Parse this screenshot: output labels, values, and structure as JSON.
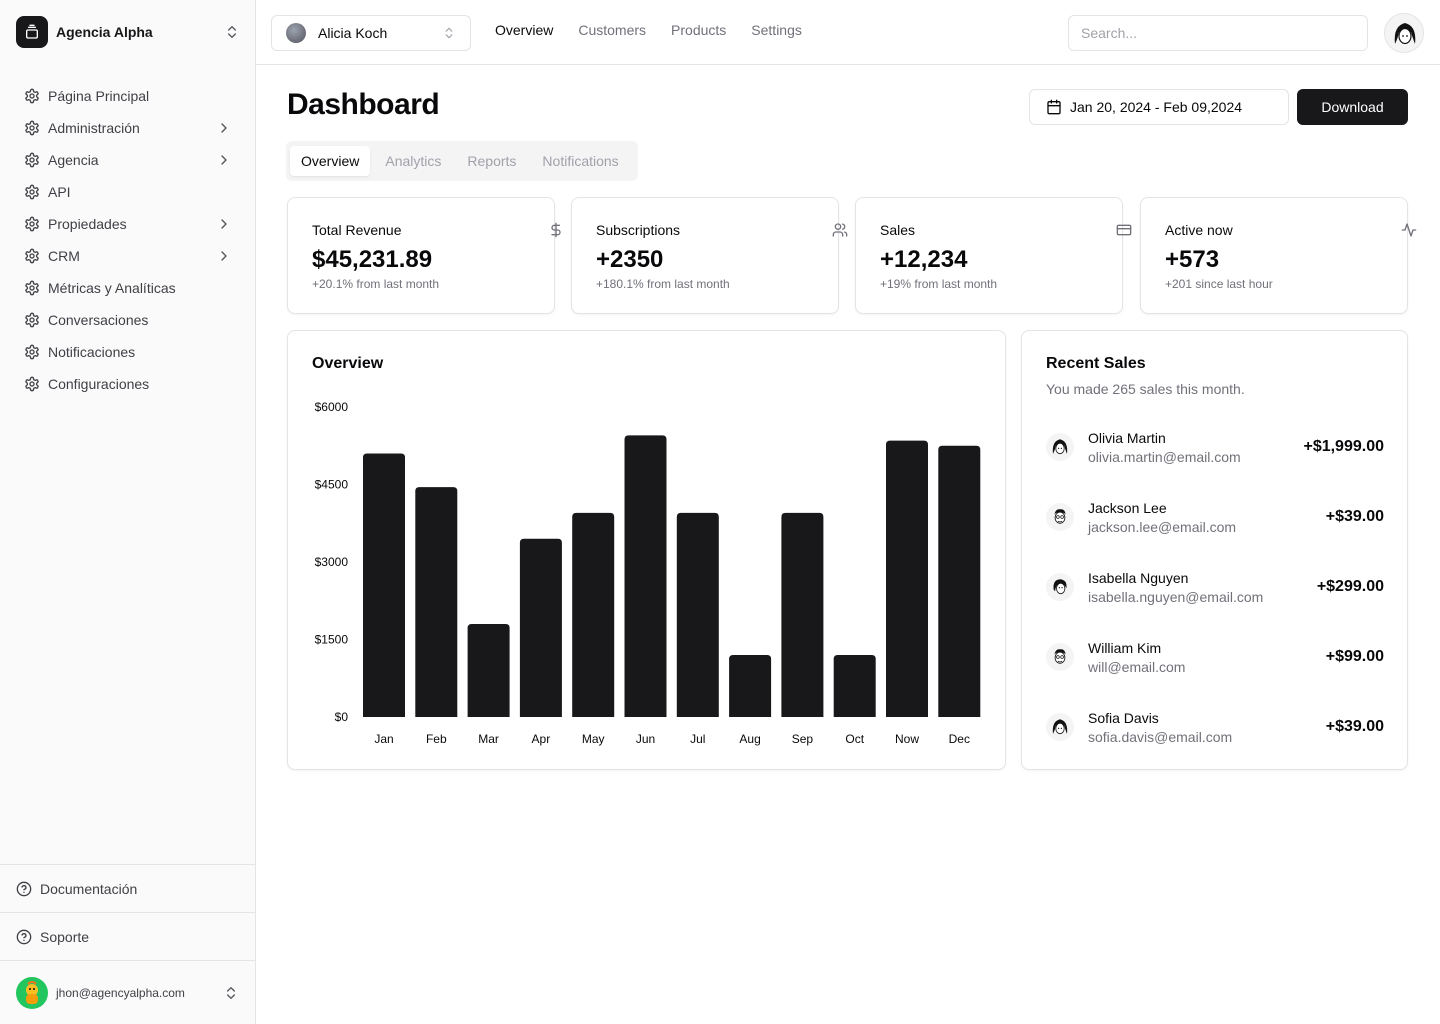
{
  "sidebar": {
    "brand": "Agencia Alpha",
    "items": [
      {
        "label": "Página Principal",
        "has_children": false
      },
      {
        "label": "Administración",
        "has_children": true
      },
      {
        "label": "Agencia",
        "has_children": true
      },
      {
        "label": "API",
        "has_children": false
      },
      {
        "label": "Propiedades",
        "has_children": true
      },
      {
        "label": "CRM",
        "has_children": true
      },
      {
        "label": "Métricas y Analíticas",
        "has_children": false
      },
      {
        "label": "Conversaciones",
        "has_children": false
      },
      {
        "label": "Notificaciones",
        "has_children": false
      },
      {
        "label": "Configuraciones",
        "has_children": false
      }
    ],
    "footer": {
      "docs": "Documentación",
      "support": "Soporte"
    },
    "user_email": "jhon@agencyalpha.com"
  },
  "topbar": {
    "team": "Alicia Koch",
    "nav": [
      "Overview",
      "Customers",
      "Products",
      "Settings"
    ],
    "active_nav": "Overview",
    "search_placeholder": "Search..."
  },
  "main": {
    "title": "Dashboard",
    "date_range": "Jan 20, 2024 - Feb 09,2024",
    "download_label": "Download",
    "tabs": [
      "Overview",
      "Analytics",
      "Reports",
      "Notifications"
    ],
    "active_tab": "Overview"
  },
  "stats": [
    {
      "title": "Total Revenue",
      "value": "$45,231.89",
      "sub": "+20.1% from last month",
      "icon": "dollar-icon"
    },
    {
      "title": "Subscriptions",
      "value": "+2350",
      "sub": "+180.1% from last month",
      "icon": "users-icon"
    },
    {
      "title": "Sales",
      "value": "+12,234",
      "sub": "+19% from last month",
      "icon": "credit-card-icon"
    },
    {
      "title": "Active now",
      "value": "+573",
      "sub": "+201 since last hour",
      "icon": "activity-icon"
    }
  ],
  "overview": {
    "title": "Overview"
  },
  "chart_data": {
    "type": "bar",
    "title": "Overview",
    "categories": [
      "Jan",
      "Feb",
      "Mar",
      "Apr",
      "May",
      "Jun",
      "Jul",
      "Aug",
      "Sep",
      "Oct",
      "Now",
      "Dec"
    ],
    "values": [
      5100,
      4450,
      1800,
      3450,
      3950,
      5450,
      3950,
      1200,
      3950,
      1200,
      5350,
      5250
    ],
    "ylim": [
      0,
      6000
    ],
    "yticks": [
      0,
      1500,
      3000,
      4500,
      6000
    ],
    "ytick_labels": [
      "$0",
      "$1500",
      "$3000",
      "$4500",
      "$6000"
    ],
    "color": "#18181b",
    "xlabel": "",
    "ylabel": ""
  },
  "recent_sales": {
    "title": "Recent Sales",
    "subtitle": "You made 265 sales this month.",
    "items": [
      {
        "name": "Olivia Martin",
        "email": "olivia.martin@email.com",
        "amount": "+$1,999.00"
      },
      {
        "name": "Jackson Lee",
        "email": "jackson.lee@email.com",
        "amount": "+$39.00"
      },
      {
        "name": "Isabella Nguyen",
        "email": "isabella.nguyen@email.com",
        "amount": "+$299.00"
      },
      {
        "name": "William Kim",
        "email": "will@email.com",
        "amount": "+$99.00"
      },
      {
        "name": "Sofia Davis",
        "email": "sofia.davis@email.com",
        "amount": "+$39.00"
      }
    ]
  },
  "colors": {
    "accent": "#18181b",
    "muted": "#71717a",
    "border": "#e4e4e7",
    "user_avatar": "#22c55e"
  }
}
